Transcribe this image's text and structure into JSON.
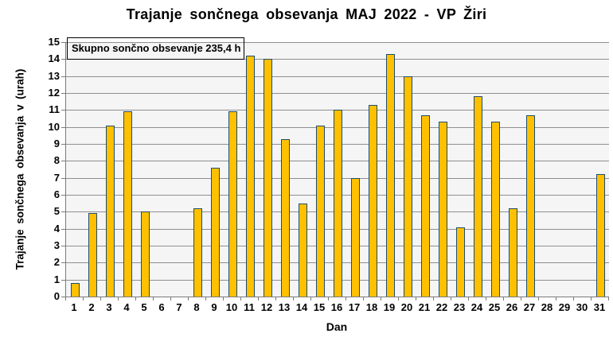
{
  "chart_data": {
    "type": "bar",
    "title": "Trajanje sončnega obsevanja MAJ 2022 - VP Žiri",
    "annotation": "Skupno sončno obsevanje 235,4 h",
    "xlabel": "Dan",
    "ylabel": "Trajanje sončnega obsevanja v (urah)",
    "categories": [
      1,
      2,
      3,
      4,
      5,
      6,
      7,
      8,
      9,
      10,
      11,
      12,
      13,
      14,
      15,
      16,
      17,
      18,
      19,
      20,
      21,
      22,
      23,
      24,
      25,
      26,
      27,
      28,
      29,
      30,
      31
    ],
    "values": [
      0.8,
      4.9,
      10.1,
      10.9,
      5.0,
      0,
      0,
      5.2,
      7.6,
      10.9,
      14.2,
      14.0,
      9.3,
      5.5,
      10.1,
      11.0,
      7.0,
      11.3,
      14.3,
      13.0,
      10.7,
      10.3,
      4.1,
      11.8,
      10.3,
      5.2,
      10.7,
      0,
      0,
      0,
      7.2
    ],
    "total_hours": "235,4",
    "ylim": [
      0,
      15
    ],
    "ytick_step": 1,
    "grid": "horizontal",
    "legend": "none",
    "colors": {
      "bar_fill": "#ffc000",
      "bar_border": "#1f4e6e",
      "plot_background": "#f5f5f5",
      "gridline": "#8f8f8f",
      "text": "#000000"
    }
  }
}
